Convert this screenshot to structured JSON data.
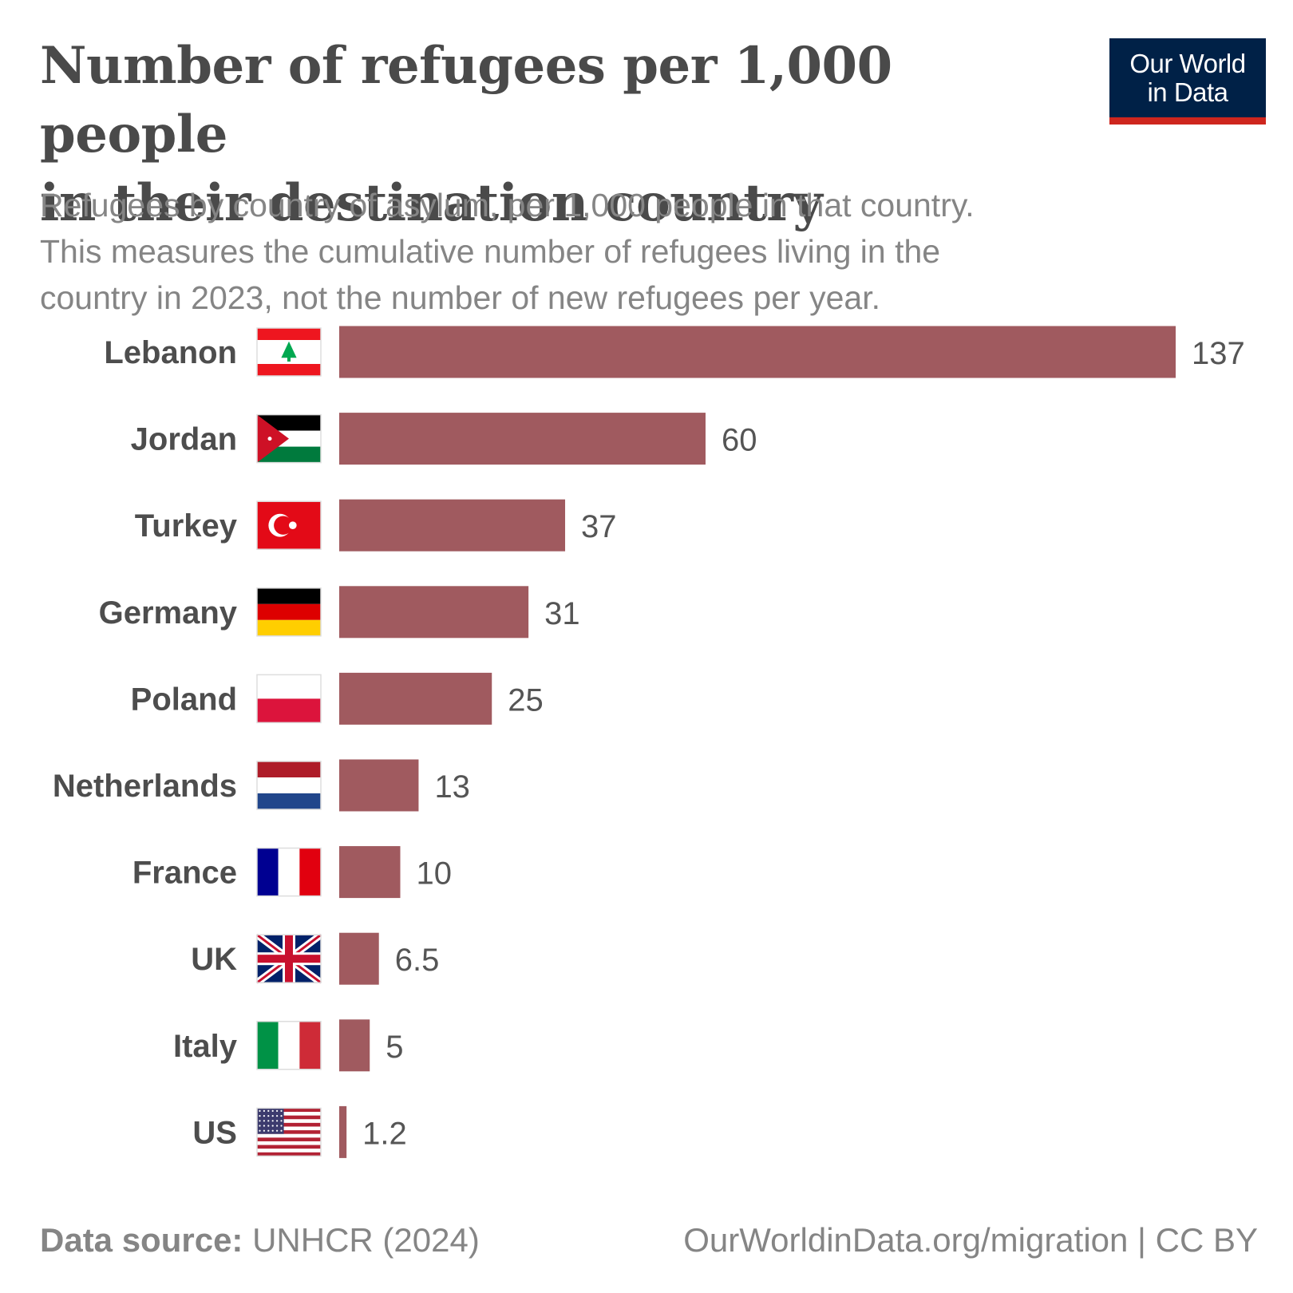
{
  "title_line1": "Number of refugees per 1,000 people",
  "title_line2": "in their destination country",
  "subtitle_line1": "Refugees by country of asylum, per 1,000 people in that country.",
  "subtitle_line2": "This measures the cumulative number of refugees living in the",
  "subtitle_line3": "country in 2023, not the number of new refugees per year.",
  "logo": {
    "line1": "Our World",
    "line2": "in Data"
  },
  "footer": {
    "source_label": "Data source:",
    "source_value": "UNHCR (2024)",
    "url": "OurWorldinData.org/migration | CC BY"
  },
  "colors": {
    "bar": "#a05a5f",
    "logo_bg": "#002147",
    "logo_accent": "#ce261e"
  },
  "chart_data": {
    "type": "bar",
    "orientation": "horizontal",
    "title": "Number of refugees per 1,000 people in their destination country",
    "categories": [
      "Lebanon",
      "Jordan",
      "Turkey",
      "Germany",
      "Poland",
      "Netherlands",
      "France",
      "UK",
      "Italy",
      "US"
    ],
    "values": [
      137,
      60,
      37,
      31,
      25,
      13,
      10,
      6.5,
      5,
      1.2
    ],
    "value_labels": [
      "137",
      "60",
      "37",
      "31",
      "25",
      "13",
      "10",
      "6.5",
      "5",
      "1.2"
    ],
    "flags": [
      "lebanon-flag",
      "jordan-flag",
      "turkey-flag",
      "germany-flag",
      "poland-flag",
      "netherlands-flag",
      "france-flag",
      "uk-flag",
      "italy-flag",
      "us-flag"
    ],
    "xlim": [
      0,
      137
    ],
    "xlabel": "",
    "ylabel": "",
    "grid": false,
    "legend": "none"
  }
}
